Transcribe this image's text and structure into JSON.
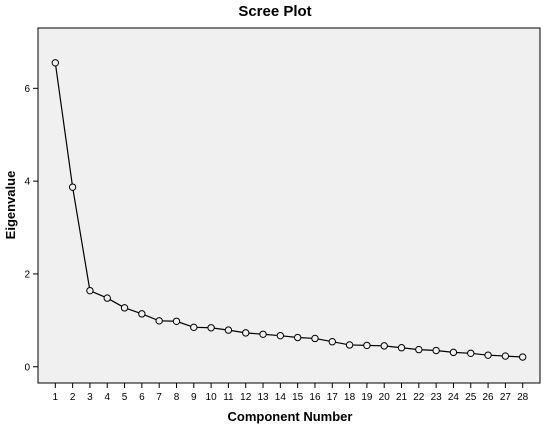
{
  "chart_data": {
    "type": "line",
    "title": "Scree Plot",
    "xlabel": "Component Number",
    "ylabel": "Eigenvalue",
    "x": [
      1,
      2,
      3,
      4,
      5,
      6,
      7,
      8,
      9,
      10,
      11,
      12,
      13,
      14,
      15,
      16,
      17,
      18,
      19,
      20,
      21,
      22,
      23,
      24,
      25,
      26,
      27,
      28
    ],
    "x_tick_labels": [
      "1",
      "2",
      "3",
      "4",
      "5",
      "6",
      "7",
      "8",
      "9",
      "10",
      "11",
      "12",
      "13",
      "14",
      "15",
      "16",
      "17",
      "18",
      "19",
      "20",
      "21",
      "22",
      "23",
      "24",
      "25",
      "26",
      "27",
      "28"
    ],
    "series": [
      {
        "values": [
          6.55,
          3.87,
          1.64,
          1.48,
          1.27,
          1.14,
          0.99,
          0.98,
          0.85,
          0.84,
          0.79,
          0.73,
          0.7,
          0.67,
          0.63,
          0.61,
          0.54,
          0.47,
          0.46,
          0.45,
          0.41,
          0.37,
          0.35,
          0.31,
          0.29,
          0.25,
          0.23,
          0.21
        ]
      }
    ],
    "xlim": [
      0,
      29
    ],
    "ylim": [
      -0.35,
      7.3
    ],
    "y_ticks": [
      0,
      2,
      4,
      6
    ],
    "y_tick_labels": [
      "0",
      "2",
      "4",
      "6"
    ],
    "grid": false,
    "marker": "open-circle",
    "colors": {
      "plot_background": "#f0f0f0",
      "line": "#000000",
      "marker_fill": "#f0f0f0"
    }
  }
}
